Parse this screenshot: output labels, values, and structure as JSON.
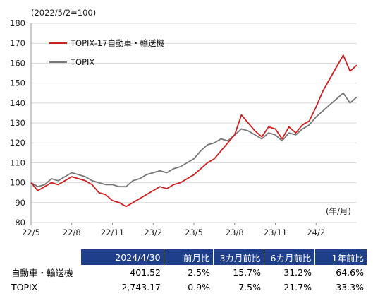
{
  "chart_data": {
    "type": "line",
    "note": "(2022/5/2=100)",
    "unit_label": "(年/月)",
    "ylim": [
      80,
      180
    ],
    "yticks": [
      80,
      90,
      100,
      110,
      120,
      130,
      140,
      150,
      160,
      170,
      180
    ],
    "x_tick_labels": [
      "22/5",
      "22/8",
      "22/11",
      "23/2",
      "23/5",
      "23/8",
      "23/11",
      "24/2"
    ],
    "x_tick_months": [
      0,
      3,
      6,
      9,
      12,
      15,
      18,
      21
    ],
    "x_range_months": [
      0,
      24
    ],
    "grid": true,
    "legend_position": "top-left",
    "series": [
      {
        "name": "TOPIX-17自動車・輸送機",
        "color": "#cc1f1f",
        "x": [
          0,
          0.5,
          1,
          1.5,
          2,
          2.5,
          3,
          3.5,
          4,
          4.5,
          5,
          5.5,
          6,
          6.5,
          7,
          7.5,
          8,
          8.5,
          9,
          9.5,
          10,
          10.5,
          11,
          11.5,
          12,
          12.5,
          13,
          13.5,
          14,
          14.5,
          15,
          15.5,
          16,
          16.5,
          17,
          17.5,
          18,
          18.5,
          19,
          19.5,
          20,
          20.5,
          21,
          21.5,
          22,
          22.5,
          23,
          23.5,
          24
        ],
        "y": [
          100,
          96,
          98,
          100,
          99,
          101,
          103,
          102,
          101,
          99,
          95,
          94,
          91,
          90,
          88,
          90,
          92,
          94,
          96,
          98,
          97,
          99,
          100,
          102,
          104,
          107,
          110,
          112,
          116,
          120,
          124,
          134,
          130,
          126,
          123,
          128,
          127,
          122,
          128,
          125,
          129,
          131,
          138,
          146,
          152,
          158,
          164,
          156,
          159
        ]
      },
      {
        "name": "TOPIX",
        "color": "#777777",
        "x": [
          0,
          0.5,
          1,
          1.5,
          2,
          2.5,
          3,
          3.5,
          4,
          4.5,
          5,
          5.5,
          6,
          6.5,
          7,
          7.5,
          8,
          8.5,
          9,
          9.5,
          10,
          10.5,
          11,
          11.5,
          12,
          12.5,
          13,
          13.5,
          14,
          14.5,
          15,
          15.5,
          16,
          16.5,
          17,
          17.5,
          18,
          18.5,
          19,
          19.5,
          20,
          20.5,
          21,
          21.5,
          22,
          22.5,
          23,
          23.5,
          24
        ],
        "y": [
          100,
          98,
          99,
          102,
          101,
          103,
          105,
          104,
          103,
          101,
          100,
          99,
          99,
          98,
          98,
          101,
          102,
          104,
          105,
          106,
          105,
          107,
          108,
          110,
          112,
          116,
          119,
          120,
          122,
          121,
          124,
          127,
          126,
          124,
          122,
          125,
          124,
          121,
          125,
          124,
          127,
          129,
          133,
          136,
          139,
          142,
          145,
          140,
          143
        ]
      }
    ]
  },
  "table": {
    "headers": [
      "2024/4/30",
      "前月比",
      "3カ月前比",
      "6カ月前比",
      "1年前比"
    ],
    "rows": [
      {
        "label": "自動車・輸送機",
        "values": [
          "401.52",
          "-2.5%",
          "15.7%",
          "31.2%",
          "64.6%"
        ]
      },
      {
        "label": "TOPIX",
        "values": [
          "2,743.17",
          "-0.9%",
          "7.5%",
          "21.7%",
          "33.3%"
        ]
      }
    ]
  }
}
